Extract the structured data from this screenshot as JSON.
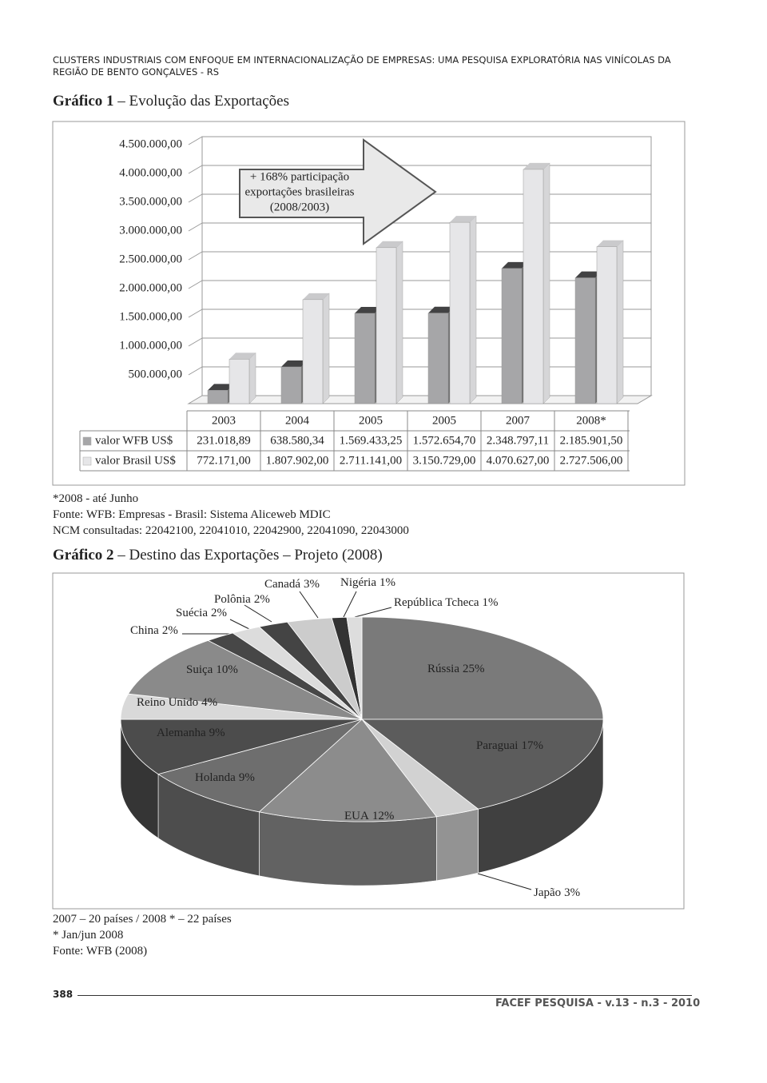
{
  "header": {
    "running_title": "CLUSTERS INDUSTRIAIS COM ENFOQUE EM INTERNACIONALIZAÇÃO DE EMPRESAS: UMA PESQUISA EXPLORATÓRIA NAS VINÍCOLAS DA REGIÃO DE BENTO GONÇALVES - RS"
  },
  "figure1": {
    "label": "Gráfico 1",
    "caption": "– Evolução das Exportações",
    "notes": [
      "*2008 - até Junho",
      "Fonte: WFB: Empresas - Brasil: Sistema Aliceweb MDIC",
      "NCM consultadas: 22042100, 22041010, 22042900, 22041090, 22043000"
    ]
  },
  "figure2": {
    "label": "Gráfico 2",
    "caption": "– Destino das Exportações – Projeto (2008)",
    "notes": [
      "2007 – 20 países / 2008 * – 22 países",
      "* Jan/jun 2008",
      "Fonte: WFB (2008)"
    ]
  },
  "footer": {
    "page": "388",
    "journal": "FACEF PESQUISA - v.13 - n.3 - 2010"
  },
  "chart_data": [
    {
      "type": "bar",
      "annotation": [
        "+ 168% participação",
        "exportações brasileiras",
        "(2008/2003)"
      ],
      "categories": [
        "2003",
        "2004",
        "2005",
        "2005",
        "2007",
        "2008*"
      ],
      "series": [
        {
          "name": "valor WFB US$",
          "color": "#a6a6a8",
          "values": [
            231018.89,
            638580.34,
            1569433.25,
            1572654.7,
            2348797.11,
            2185901.5
          ],
          "value_labels": [
            "231.018,89",
            "638.580,34",
            "1.569.433,25",
            "1.572.654,70",
            "2.348.797,11",
            "2.185.901,50"
          ]
        },
        {
          "name": "valor Brasil US$",
          "color": "#e6e6e8",
          "values": [
            772171.0,
            1807902.0,
            2711141.0,
            3150729.0,
            4070627.0,
            2727506.0
          ],
          "value_labels": [
            "772.171,00",
            "1.807.902,00",
            "2.711.141,00",
            "3.150.729,00",
            "4.070.627,00",
            "2.727.506,00"
          ]
        }
      ],
      "ylim": [
        0,
        4500000
      ],
      "yticks": [
        {
          "value": 500000,
          "label": "500.000,00"
        },
        {
          "value": 1000000,
          "label": "1.000.000,00"
        },
        {
          "value": 1500000,
          "label": "1.500.000,00"
        },
        {
          "value": 2000000,
          "label": "2.000.000,00"
        },
        {
          "value": 2500000,
          "label": "2.500.000,00"
        },
        {
          "value": 3000000,
          "label": "3.000.000,00"
        },
        {
          "value": 3500000,
          "label": "3.500.000,00"
        },
        {
          "value": 4000000,
          "label": "4.000.000,00"
        },
        {
          "value": 4500000,
          "label": "4.500.000,00"
        }
      ],
      "grid": true
    },
    {
      "type": "pie",
      "categories": [
        "Rússia",
        "Paraguai",
        "Japão",
        "EUA",
        "Holanda",
        "Alemanha",
        "Reino Unido",
        "Suiça",
        "China",
        "Suécia",
        "Polônia",
        "Canadá",
        "Nigéria",
        "República Tcheca"
      ],
      "values": [
        25,
        17,
        3,
        12,
        9,
        9,
        4,
        10,
        2,
        2,
        2,
        3,
        1,
        1
      ],
      "value_labels": [
        "25%",
        "17%",
        "3%",
        "12%",
        "9%",
        "9%",
        "4%",
        "10%",
        "2%",
        "2%",
        "2%",
        "3%",
        "1%",
        "1%"
      ],
      "colors": [
        "#7a7a7a",
        "#5c5c5c",
        "#d2d2d2",
        "#8c8c8c",
        "#6e6e6e",
        "#4c4c4c",
        "#d9d9d9",
        "#8a8a8a",
        "#474747",
        "#dcdcdc",
        "#444444",
        "#cccccc",
        "#333333",
        "#dddddd"
      ]
    }
  ]
}
